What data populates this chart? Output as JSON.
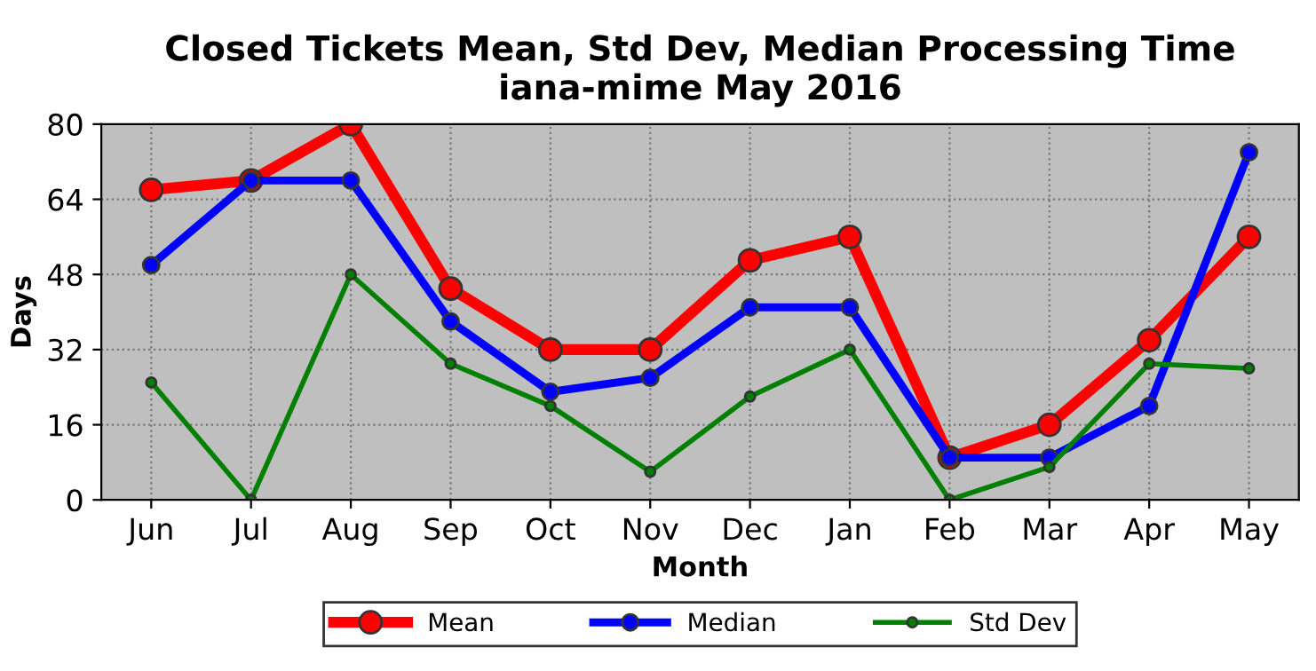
{
  "chart_data": {
    "type": "line",
    "title": "Closed Tickets Mean, Std Dev, Median Processing Time\niana-mime May 2016",
    "xlabel": "Month",
    "ylabel": "Days",
    "categories": [
      "Jun",
      "Jul",
      "Aug",
      "Sep",
      "Oct",
      "Nov",
      "Dec",
      "Jan",
      "Feb",
      "Mar",
      "Apr",
      "May"
    ],
    "series": [
      {
        "name": "Mean",
        "color": "#ff0000",
        "values": [
          66,
          68,
          80,
          45,
          32,
          32,
          51,
          56,
          9,
          16,
          34,
          56
        ]
      },
      {
        "name": "Median",
        "color": "#0000ff",
        "values": [
          50,
          68,
          68,
          38,
          23,
          26,
          41,
          41,
          9,
          9,
          20,
          74
        ]
      },
      {
        "name": "Std Dev",
        "color": "#008000",
        "values": [
          25,
          0,
          48,
          29,
          20,
          6,
          22,
          32,
          0,
          7,
          29,
          28
        ]
      }
    ],
    "ylim": [
      0,
      80
    ],
    "yticks": [
      0,
      16,
      32,
      48,
      64,
      80
    ],
    "grid": true,
    "legend": "bottom",
    "marker": "circle",
    "line_style": "solid"
  }
}
